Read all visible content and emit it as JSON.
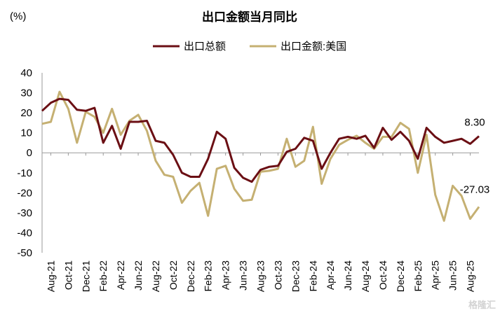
{
  "chart_data": {
    "type": "line",
    "title": "出口金额当月同比",
    "unit_label": "(%)",
    "ylim": [
      -50,
      40
    ],
    "yticks": [
      40,
      30,
      20,
      10,
      0,
      -10,
      -20,
      -30,
      -40,
      -50
    ],
    "x_tick_labels": [
      "Aug-21",
      "Oct-21",
      "Dec-21",
      "Feb-22",
      "Apr-22",
      "Jun-22",
      "Aug-22",
      "Oct-22",
      "Dec-22",
      "Feb-23",
      "Apr-23",
      "Jun-23",
      "Aug-23",
      "Oct-23",
      "Dec-23",
      "Feb-24",
      "Apr-24",
      "Jun-24",
      "Aug-24",
      "Oct-24",
      "Dec-24",
      "Feb-25",
      "Apr-25",
      "Jun-25",
      "Aug-25"
    ],
    "x": [
      "Jul-21",
      "Aug-21",
      "Sep-21",
      "Oct-21",
      "Nov-21",
      "Dec-21",
      "Jan-22",
      "Feb-22",
      "Mar-22",
      "Apr-22",
      "May-22",
      "Jun-22",
      "Jul-22",
      "Aug-22",
      "Sep-22",
      "Oct-22",
      "Nov-22",
      "Dec-22",
      "Jan-23",
      "Feb-23",
      "Mar-23",
      "Apr-23",
      "May-23",
      "Jun-23",
      "Jul-23",
      "Aug-23",
      "Sep-23",
      "Oct-23",
      "Nov-23",
      "Dec-23",
      "Jan-24",
      "Feb-24",
      "Mar-24",
      "Apr-24",
      "May-24",
      "Jun-24",
      "Jul-24",
      "Aug-24",
      "Sep-24",
      "Oct-24",
      "Nov-24",
      "Dec-24",
      "Jan-25",
      "Feb-25",
      "Mar-25",
      "Apr-25",
      "May-25",
      "Jun-25",
      "Jul-25",
      "Aug-25",
      "Sep-25"
    ],
    "series": [
      {
        "name": "出口总额",
        "color": "#6b0f14",
        "values": [
          21,
          25,
          27,
          26.5,
          21.5,
          21,
          22.5,
          5,
          13.5,
          2,
          15.5,
          15.5,
          16,
          6,
          5,
          -1,
          -10,
          -12,
          -12,
          -3,
          10.5,
          7,
          -7.5,
          -12.5,
          -14.5,
          -8.5,
          -7,
          -6.5,
          0.5,
          2,
          7.5,
          6,
          -8,
          0,
          7,
          8,
          7,
          8.5,
          2.5,
          12.5,
          6.5,
          10.5,
          6,
          -3,
          12.5,
          8,
          5,
          6,
          7,
          4.5,
          8.3
        ],
        "end_label": "8.30"
      },
      {
        "name": "出口金额:美国",
        "color": "#c5b072",
        "values": [
          14.5,
          15.5,
          30.5,
          22,
          5,
          20.5,
          18,
          10,
          22,
          9,
          16,
          19,
          11,
          -4,
          -11,
          -12,
          -25,
          -19,
          -15,
          -31.5,
          -8,
          -6.5,
          -18,
          -24,
          -23.5,
          -9.5,
          -9,
          -8,
          7,
          -7,
          -4,
          13,
          -15.5,
          -3,
          4,
          6.5,
          8.5,
          5,
          2,
          8,
          8,
          15,
          12,
          -10,
          9,
          -21,
          -34,
          -16.5,
          -21.5,
          -33,
          -27.03
        ],
        "end_label": "-27.03"
      }
    ],
    "grid": false,
    "legend_position": "top-center"
  },
  "watermark": "格隆汇"
}
